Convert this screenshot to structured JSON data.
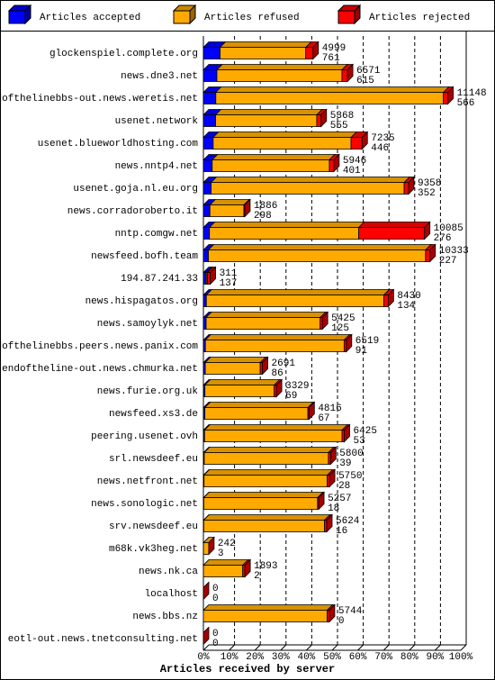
{
  "chart_data": {
    "type": "bar3d-stacked-horizontal",
    "x_label": "Articles received by server",
    "categories": [
      "glockenspiel.complete.org",
      "news.dne3.net",
      "endofthelinebbs-out.news.weretis.net",
      "usenet.network",
      "usenet.blueworldhosting.com",
      "news.nntp4.net",
      "usenet.goja.nl.eu.org",
      "news.corradoroberto.it",
      "nntp.comgw.net",
      "newsfeed.bofh.team",
      "194.87.241.33",
      "news.hispagatos.org",
      "news.samoylyk.net",
      "endofthelinebbs.peers.news.panix.com",
      "endoftheline-out.news.chmurka.net",
      "news.furie.org.uk",
      "newsfeed.xs3.de",
      "peering.usenet.ovh",
      "srl.newsdeef.eu",
      "news.netfront.net",
      "news.sonologic.net",
      "srv.newsdeef.eu",
      "m68k.vk3heg.net",
      "news.nk.ca",
      "localhost",
      "news.bbs.nz",
      "eotl-out.news.tnetconsulting.net"
    ],
    "totals": [
      4999,
      6571,
      11148,
      5368,
      7235,
      5946,
      9358,
      1886,
      10085,
      10333,
      311,
      8430,
      5425,
      6519,
      2691,
      3329,
      4816,
      6425,
      5800,
      5750,
      5257,
      5624,
      242,
      1893,
      0,
      5744,
      0
    ],
    "series": [
      {
        "name": "Articles accepted",
        "color": "#0000ff",
        "values": [
          761,
          615,
          566,
          555,
          446,
          401,
          352,
          298,
          276,
          227,
          137,
          134,
          125,
          91,
          86,
          69,
          67,
          53,
          39,
          28,
          18,
          16,
          3,
          2,
          0,
          0,
          0
        ]
      },
      {
        "name": "Articles refused",
        "color": "#ffaa00",
        "values": [
          3908,
          5706,
          10382,
          4613,
          6289,
          5345,
          8806,
          1548,
          6809,
          9906,
          54,
          8096,
          5200,
          6328,
          2505,
          3160,
          4699,
          6272,
          5661,
          5622,
          5189,
          5508,
          239,
          1791,
          0,
          5644,
          0
        ]
      },
      {
        "name": "Articles rejected",
        "color": "#ff0000",
        "values": [
          330,
          250,
          200,
          200,
          500,
          200,
          200,
          40,
          3000,
          200,
          120,
          200,
          100,
          100,
          100,
          100,
          50,
          100,
          100,
          100,
          50,
          100,
          0,
          100,
          0,
          100,
          0
        ]
      }
    ],
    "xlim": [
      0,
      11740
    ],
    "xticks": [
      {
        "value": 0,
        "label": "0%"
      },
      {
        "value": 1174,
        "label": "10%"
      },
      {
        "value": 2348,
        "label": "20%"
      },
      {
        "value": 3522,
        "label": "30%"
      },
      {
        "value": 4696,
        "label": "40%"
      },
      {
        "value": 5870,
        "label": "50%"
      },
      {
        "value": 7044,
        "label": "60%"
      },
      {
        "value": 8218,
        "label": "70%"
      },
      {
        "value": 9392,
        "label": "80%"
      },
      {
        "value": 10566,
        "label": "90%"
      },
      {
        "value": 11740,
        "label": "100%"
      }
    ],
    "grid": true
  }
}
